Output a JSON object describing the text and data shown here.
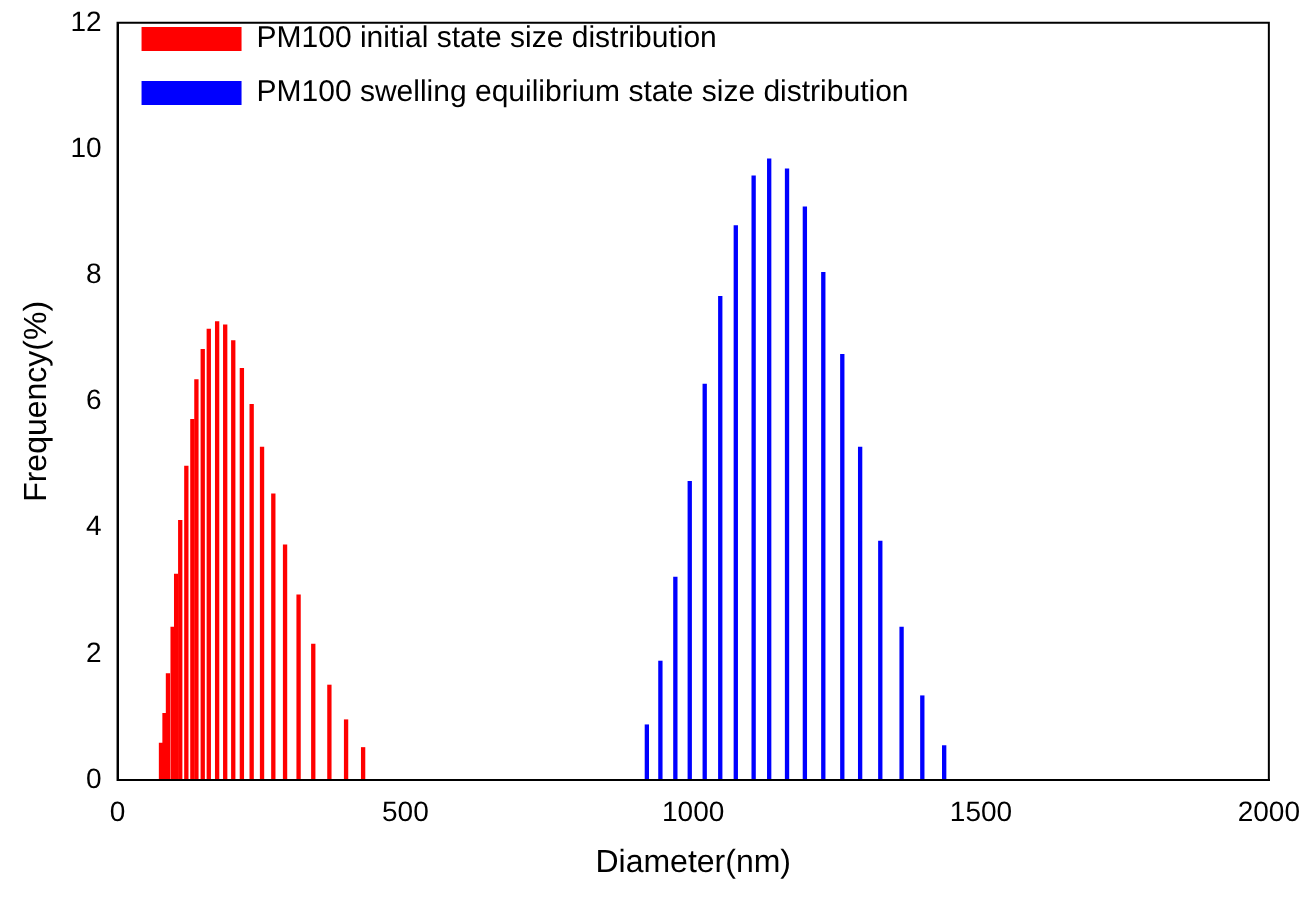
{
  "chart_data": {
    "type": "bar",
    "xlabel": "Diameter(nm)",
    "ylabel": "Frequency(%)",
    "xlim": [
      0,
      2000
    ],
    "xticks": [
      0,
      500,
      1000,
      1500,
      2000
    ],
    "ylim": [
      0,
      12
    ],
    "yticks": [
      0,
      2,
      4,
      6,
      8,
      10,
      12
    ],
    "grid": false,
    "legend": "top left",
    "series": [
      {
        "name": "PM100 initial state size distribution",
        "color": "#ff0000",
        "x": [
          75.5,
          81.6,
          87.6,
          95.7,
          101.8,
          108.9,
          119.5,
          130,
          137,
          148,
          158.5,
          173,
          187,
          201,
          216,
          233,
          251,
          270.6,
          291,
          314.5,
          340,
          368,
          397,
          426.6
        ],
        "values": [
          0.58,
          1.05,
          1.68,
          2.42,
          3.26,
          4.11,
          4.97,
          5.71,
          6.34,
          6.82,
          7.14,
          7.26,
          7.21,
          6.96,
          6.52,
          5.95,
          5.27,
          4.53,
          3.72,
          2.93,
          2.15,
          1.5,
          0.95,
          0.51
        ]
      },
      {
        "name": "PM100 swelling equilibrium state size distribution",
        "color": "#0000ff",
        "x": [
          919.5,
          943,
          969,
          994,
          1020,
          1047,
          1074,
          1105,
          1132,
          1163,
          1194,
          1226,
          1259,
          1290,
          1325,
          1362,
          1398,
          1436
        ],
        "values": [
          0.87,
          1.88,
          3.21,
          4.73,
          6.27,
          7.66,
          8.78,
          9.57,
          9.84,
          9.68,
          9.08,
          8.04,
          6.74,
          5.27,
          3.78,
          2.42,
          1.33,
          0.54
        ]
      }
    ]
  }
}
